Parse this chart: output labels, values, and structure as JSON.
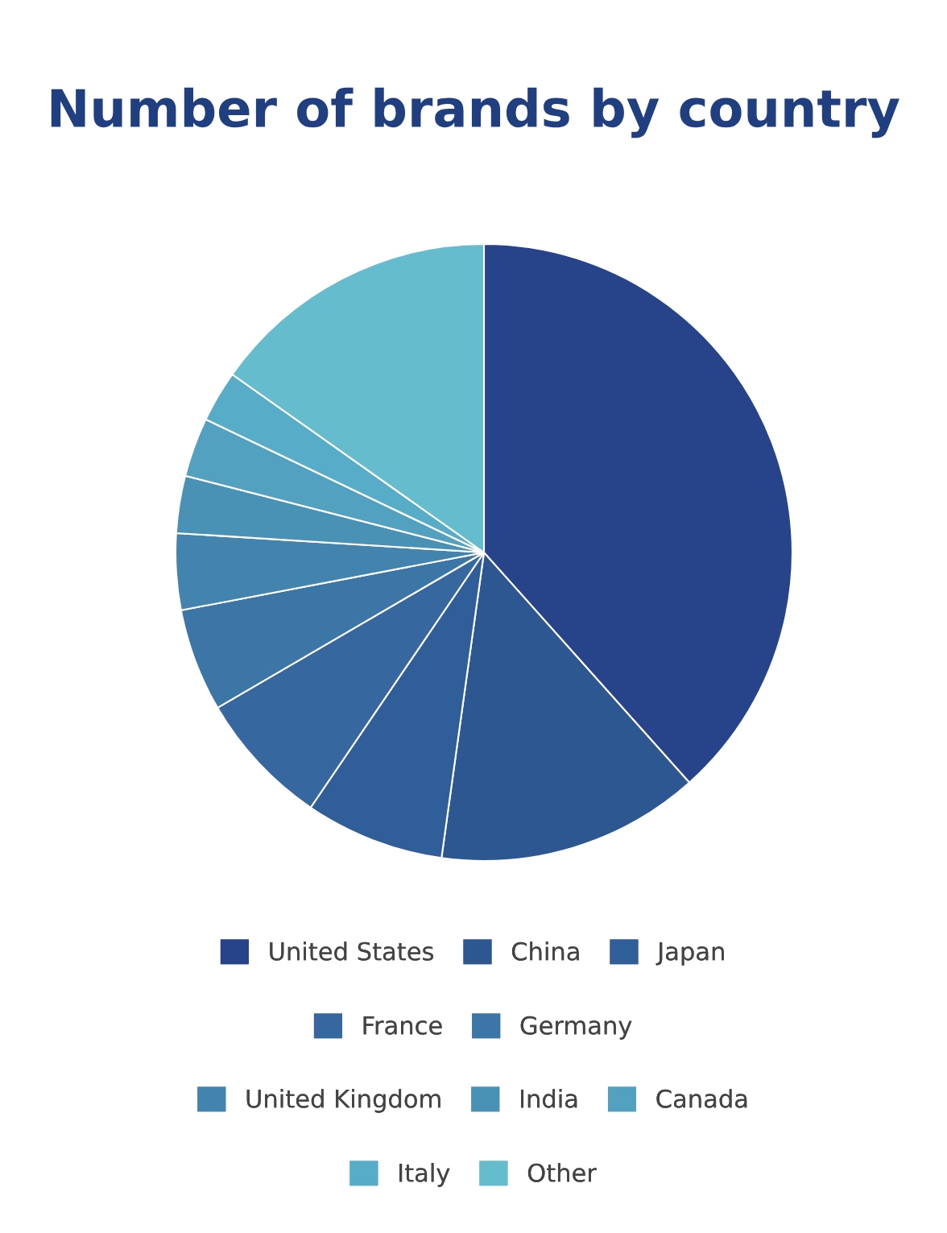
{
  "chart_data": {
    "type": "pie",
    "title": "Number of brands by country",
    "categories": [
      "United States",
      "China",
      "Japan",
      "France",
      "Germany",
      "United Kingdom",
      "India",
      "Canada",
      "Italy",
      "Other"
    ],
    "values": [
      38.4,
      13.8,
      7.3,
      7.1,
      5.4,
      4.0,
      3.0,
      3.1,
      2.7,
      15.2
    ],
    "colors": [
      "#27448a",
      "#2d5791",
      "#305e98",
      "#36689f",
      "#3c76a6",
      "#4384ae",
      "#4a91b6",
      "#52a1c0",
      "#57adc7",
      "#65bccd"
    ],
    "legend": "bottom"
  }
}
